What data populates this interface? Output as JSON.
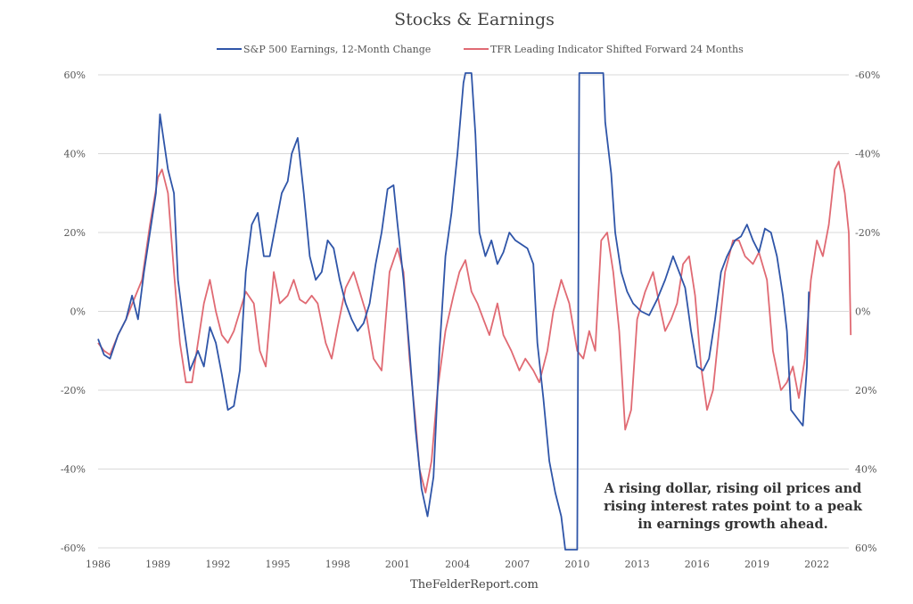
{
  "chart_data": {
    "type": "line",
    "title": "Stocks & Earnings",
    "source": "TheFelderReport.com",
    "annotation": [
      "A rising dollar, rising oil prices and",
      "rising interest rates point to a peak",
      "in earnings growth ahead."
    ],
    "grid": true,
    "legend_position": "top",
    "x_range": [
      1986,
      2023.6
    ],
    "x_ticks": [
      1986,
      1989,
      1992,
      1995,
      1998,
      2001,
      2004,
      2007,
      2010,
      2013,
      2016,
      2019,
      2022
    ],
    "y_left": {
      "range": [
        -60,
        60
      ],
      "ticks": [
        60,
        40,
        20,
        0,
        -20,
        -40,
        -60
      ],
      "tick_labels": [
        "60%",
        "40%",
        "20%",
        "0%",
        "-20%",
        "-40%",
        "-60%"
      ]
    },
    "y_right": {
      "inverted": true,
      "range": [
        -60,
        60
      ],
      "ticks": [
        -60,
        -40,
        -20,
        0,
        20,
        40,
        60
      ],
      "tick_labels": [
        "-60%",
        "-40%",
        "-20%",
        "0%",
        "20%",
        "40%",
        "60%"
      ]
    },
    "series": [
      {
        "name": "S&P 500 Earnings, 12-Month Change",
        "color": "#2f55a8",
        "axis": "left",
        "points": [
          [
            1986.0,
            -7
          ],
          [
            1986.3,
            -11
          ],
          [
            1986.6,
            -12
          ],
          [
            1987.0,
            -6
          ],
          [
            1987.4,
            -2
          ],
          [
            1987.7,
            4
          ],
          [
            1988.0,
            -2
          ],
          [
            1988.3,
            10
          ],
          [
            1988.6,
            20
          ],
          [
            1988.9,
            30
          ],
          [
            1989.1,
            50
          ],
          [
            1989.3,
            43
          ],
          [
            1989.5,
            36
          ],
          [
            1989.8,
            30
          ],
          [
            1990.0,
            8
          ],
          [
            1990.3,
            -4
          ],
          [
            1990.6,
            -15
          ],
          [
            1991.0,
            -10
          ],
          [
            1991.3,
            -14
          ],
          [
            1991.6,
            -4
          ],
          [
            1991.9,
            -8
          ],
          [
            1992.2,
            -16
          ],
          [
            1992.5,
            -25
          ],
          [
            1992.8,
            -24
          ],
          [
            1993.1,
            -15
          ],
          [
            1993.4,
            10
          ],
          [
            1993.7,
            22
          ],
          [
            1994.0,
            25
          ],
          [
            1994.3,
            14
          ],
          [
            1994.6,
            14
          ],
          [
            1994.9,
            22
          ],
          [
            1995.2,
            30
          ],
          [
            1995.5,
            33
          ],
          [
            1995.7,
            40
          ],
          [
            1996.0,
            44
          ],
          [
            1996.3,
            30
          ],
          [
            1996.6,
            14
          ],
          [
            1996.9,
            8
          ],
          [
            1997.2,
            10
          ],
          [
            1997.5,
            18
          ],
          [
            1997.8,
            16
          ],
          [
            1998.1,
            8
          ],
          [
            1998.4,
            2
          ],
          [
            1998.7,
            -2
          ],
          [
            1999.0,
            -5
          ],
          [
            1999.3,
            -3
          ],
          [
            1999.6,
            2
          ],
          [
            1999.9,
            12
          ],
          [
            2000.2,
            20
          ],
          [
            2000.5,
            31
          ],
          [
            2000.8,
            32
          ],
          [
            2001.0,
            22
          ],
          [
            2001.3,
            8
          ],
          [
            2001.6,
            -10
          ],
          [
            2001.9,
            -30
          ],
          [
            2002.2,
            -45
          ],
          [
            2002.5,
            -52
          ],
          [
            2002.8,
            -42
          ],
          [
            2003.1,
            -10
          ],
          [
            2003.4,
            14
          ],
          [
            2003.7,
            25
          ],
          [
            2004.0,
            40
          ],
          [
            2004.3,
            58
          ],
          [
            2004.4,
            62
          ],
          [
            2004.7,
            62
          ],
          [
            2004.9,
            45
          ],
          [
            2005.1,
            20
          ],
          [
            2005.4,
            14
          ],
          [
            2005.7,
            18
          ],
          [
            2006.0,
            12
          ],
          [
            2006.3,
            15
          ],
          [
            2006.6,
            20
          ],
          [
            2006.9,
            18
          ],
          [
            2007.2,
            17
          ],
          [
            2007.5,
            16
          ],
          [
            2007.8,
            12
          ],
          [
            2008.0,
            -8
          ],
          [
            2008.3,
            -22
          ],
          [
            2008.6,
            -38
          ],
          [
            2008.9,
            -46
          ],
          [
            2009.2,
            -52
          ],
          [
            2009.4,
            -62
          ],
          [
            2010.0,
            -62
          ],
          [
            2010.1,
            62
          ],
          [
            2011.3,
            62
          ],
          [
            2011.4,
            48
          ],
          [
            2011.7,
            35
          ],
          [
            2011.9,
            20
          ],
          [
            2012.2,
            10
          ],
          [
            2012.5,
            5
          ],
          [
            2012.8,
            2
          ],
          [
            2013.2,
            0
          ],
          [
            2013.6,
            -1
          ],
          [
            2014.0,
            3
          ],
          [
            2014.4,
            8
          ],
          [
            2014.8,
            14
          ],
          [
            2015.1,
            10
          ],
          [
            2015.4,
            6
          ],
          [
            2015.7,
            -5
          ],
          [
            2016.0,
            -14
          ],
          [
            2016.3,
            -15
          ],
          [
            2016.6,
            -12
          ],
          [
            2016.9,
            -2
          ],
          [
            2017.2,
            10
          ],
          [
            2017.5,
            14
          ],
          [
            2017.9,
            18
          ],
          [
            2018.2,
            19
          ],
          [
            2018.5,
            22
          ],
          [
            2018.8,
            18
          ],
          [
            2019.1,
            15
          ],
          [
            2019.4,
            21
          ],
          [
            2019.7,
            20
          ],
          [
            2020.0,
            14
          ],
          [
            2020.3,
            4
          ],
          [
            2020.5,
            -5
          ],
          [
            2020.7,
            -25
          ],
          [
            2021.0,
            -27
          ],
          [
            2021.3,
            -29
          ],
          [
            2021.5,
            -14
          ],
          [
            2021.6,
            5
          ]
        ]
      },
      {
        "name": "TFR Leading Indicator Shifted Forward 24 Months",
        "color": "#e06a73",
        "axis": "right",
        "points": [
          [
            1986.0,
            8
          ],
          [
            1986.3,
            10
          ],
          [
            1986.6,
            11
          ],
          [
            1987.0,
            6
          ],
          [
            1987.4,
            2
          ],
          [
            1987.8,
            -3
          ],
          [
            1988.2,
            -8
          ],
          [
            1988.6,
            -22
          ],
          [
            1989.0,
            -34
          ],
          [
            1989.2,
            -36
          ],
          [
            1989.5,
            -30
          ],
          [
            1989.8,
            -10
          ],
          [
            1990.1,
            8
          ],
          [
            1990.4,
            18
          ],
          [
            1990.7,
            18
          ],
          [
            1991.0,
            8
          ],
          [
            1991.3,
            -2
          ],
          [
            1991.6,
            -8
          ],
          [
            1991.9,
            0
          ],
          [
            1992.2,
            6
          ],
          [
            1992.5,
            8
          ],
          [
            1992.8,
            5
          ],
          [
            1993.1,
            0
          ],
          [
            1993.4,
            -5
          ],
          [
            1993.8,
            -2
          ],
          [
            1994.1,
            10
          ],
          [
            1994.4,
            14
          ],
          [
            1994.8,
            -10
          ],
          [
            1995.1,
            -2
          ],
          [
            1995.5,
            -4
          ],
          [
            1995.8,
            -8
          ],
          [
            1996.1,
            -3
          ],
          [
            1996.4,
            -2
          ],
          [
            1996.7,
            -4
          ],
          [
            1997.0,
            -2
          ],
          [
            1997.4,
            8
          ],
          [
            1997.7,
            12
          ],
          [
            1998.0,
            4
          ],
          [
            1998.4,
            -6
          ],
          [
            1998.8,
            -10
          ],
          [
            1999.1,
            -5
          ],
          [
            1999.4,
            0
          ],
          [
            1999.8,
            12
          ],
          [
            2000.2,
            15
          ],
          [
            2000.6,
            -10
          ],
          [
            2001.0,
            -16
          ],
          [
            2001.3,
            -10
          ],
          [
            2001.6,
            12
          ],
          [
            2001.9,
            28
          ],
          [
            2002.1,
            40
          ],
          [
            2002.4,
            46
          ],
          [
            2002.7,
            38
          ],
          [
            2003.0,
            20
          ],
          [
            2003.4,
            5
          ],
          [
            2003.8,
            -4
          ],
          [
            2004.1,
            -10
          ],
          [
            2004.4,
            -13
          ],
          [
            2004.7,
            -5
          ],
          [
            2005.0,
            -2
          ],
          [
            2005.3,
            2
          ],
          [
            2005.6,
            6
          ],
          [
            2006.0,
            -2
          ],
          [
            2006.3,
            6
          ],
          [
            2006.7,
            10
          ],
          [
            2007.1,
            15
          ],
          [
            2007.4,
            12
          ],
          [
            2007.8,
            15
          ],
          [
            2008.1,
            18
          ],
          [
            2008.5,
            10
          ],
          [
            2008.8,
            0
          ],
          [
            2009.2,
            -8
          ],
          [
            2009.6,
            -2
          ],
          [
            2010.0,
            10
          ],
          [
            2010.3,
            12
          ],
          [
            2010.6,
            5
          ],
          [
            2010.9,
            10
          ],
          [
            2011.2,
            -18
          ],
          [
            2011.5,
            -20
          ],
          [
            2011.8,
            -10
          ],
          [
            2012.1,
            5
          ],
          [
            2012.4,
            30
          ],
          [
            2012.7,
            25
          ],
          [
            2013.0,
            2
          ],
          [
            2013.4,
            -5
          ],
          [
            2013.8,
            -10
          ],
          [
            2014.1,
            -2
          ],
          [
            2014.4,
            5
          ],
          [
            2014.7,
            2
          ],
          [
            2015.0,
            -2
          ],
          [
            2015.3,
            -12
          ],
          [
            2015.6,
            -14
          ],
          [
            2015.9,
            -4
          ],
          [
            2016.2,
            14
          ],
          [
            2016.5,
            25
          ],
          [
            2016.8,
            20
          ],
          [
            2017.1,
            5
          ],
          [
            2017.4,
            -10
          ],
          [
            2017.8,
            -18
          ],
          [
            2018.1,
            -18
          ],
          [
            2018.4,
            -14
          ],
          [
            2018.8,
            -12
          ],
          [
            2019.1,
            -15
          ],
          [
            2019.5,
            -8
          ],
          [
            2019.8,
            10
          ],
          [
            2020.2,
            20
          ],
          [
            2020.5,
            18
          ],
          [
            2020.8,
            14
          ],
          [
            2021.1,
            22
          ],
          [
            2021.4,
            12
          ],
          [
            2021.7,
            -8
          ],
          [
            2022.0,
            -18
          ],
          [
            2022.3,
            -14
          ],
          [
            2022.6,
            -22
          ],
          [
            2022.9,
            -36
          ],
          [
            2023.1,
            -38
          ],
          [
            2023.4,
            -30
          ],
          [
            2023.6,
            -20
          ],
          [
            2023.7,
            6
          ]
        ]
      }
    ]
  }
}
